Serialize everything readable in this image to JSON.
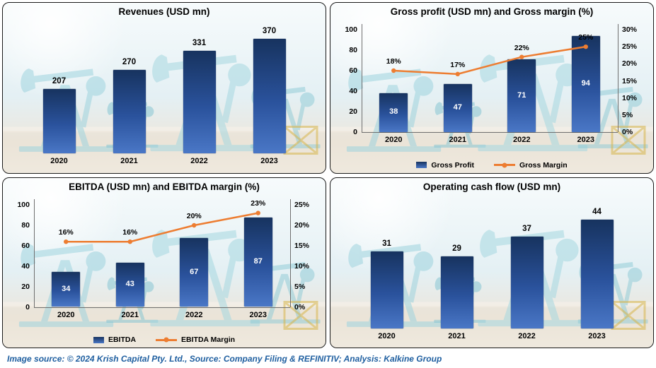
{
  "footer": {
    "text": "Image source: © 2024 Krish Capital Pty. Ltd., Source: Company Filing & REFINITIV; Analysis: Kalkine Group"
  },
  "colors": {
    "bar_top": "#17335f",
    "bar_mid": "#2a529c",
    "bar_bottom": "#4a77c6",
    "line": "#ED7D31",
    "bar_label_inside": "#FFFFFF",
    "text": "#000000",
    "footer_text": "#1F5FA0"
  },
  "chart_data": [
    {
      "type": "bar",
      "title": "Revenues (USD mn)",
      "categories": [
        "2020",
        "2021",
        "2022",
        "2023"
      ],
      "values": [
        207,
        270,
        331,
        370
      ],
      "ylim": [
        0,
        400
      ],
      "value_labels": "above",
      "grid": false,
      "legend": null
    },
    {
      "type": "bar+line",
      "title": "Gross profit (USD mn) and Gross margin (%)",
      "categories": [
        "2020",
        "2021",
        "2022",
        "2023"
      ],
      "series": [
        {
          "name": "Gross Profit",
          "kind": "bar",
          "values": [
            38,
            47,
            71,
            94
          ]
        },
        {
          "name": "Gross Margin",
          "kind": "line",
          "values": [
            18,
            17,
            22,
            25
          ],
          "labels": [
            "18%",
            "17%",
            "22%",
            "25%"
          ]
        }
      ],
      "left_axis": {
        "max": 100,
        "ticks": [
          "0",
          "20",
          "40",
          "60",
          "80",
          "100"
        ]
      },
      "right_axis": {
        "max": 30,
        "ticks": [
          "0%",
          "5%",
          "10%",
          "15%",
          "20%",
          "25%",
          "30%"
        ]
      },
      "value_labels": "inside",
      "grid": false,
      "legend": [
        "Gross Profit",
        "Gross Margin"
      ],
      "legend_position": "bottom"
    },
    {
      "type": "bar+line",
      "title": "EBITDA (USD mn) and EBITDA margin (%)",
      "categories": [
        "2020",
        "2021",
        "2022",
        "2023"
      ],
      "series": [
        {
          "name": "EBITDA",
          "kind": "bar",
          "values": [
            34,
            43,
            67,
            87
          ]
        },
        {
          "name": "EBITDA Margin",
          "kind": "line",
          "values": [
            16,
            16,
            20,
            23
          ],
          "labels": [
            "16%",
            "16%",
            "20%",
            "23%"
          ]
        }
      ],
      "left_axis": {
        "max": 100,
        "ticks": [
          "0",
          "20",
          "40",
          "60",
          "80",
          "100"
        ]
      },
      "right_axis": {
        "max": 25,
        "ticks": [
          "0%",
          "5%",
          "10%",
          "15%",
          "20%",
          "25%"
        ]
      },
      "value_labels": "inside",
      "grid": false,
      "legend": [
        "EBITDA",
        "EBITDA Margin"
      ],
      "legend_position": "bottom"
    },
    {
      "type": "bar",
      "title": "Operating cash flow (USD mn)",
      "categories": [
        "2020",
        "2021",
        "2022",
        "2023"
      ],
      "values": [
        31,
        29,
        37,
        44
      ],
      "ylim": [
        0,
        50
      ],
      "value_labels": "above",
      "grid": false,
      "legend": null
    }
  ]
}
